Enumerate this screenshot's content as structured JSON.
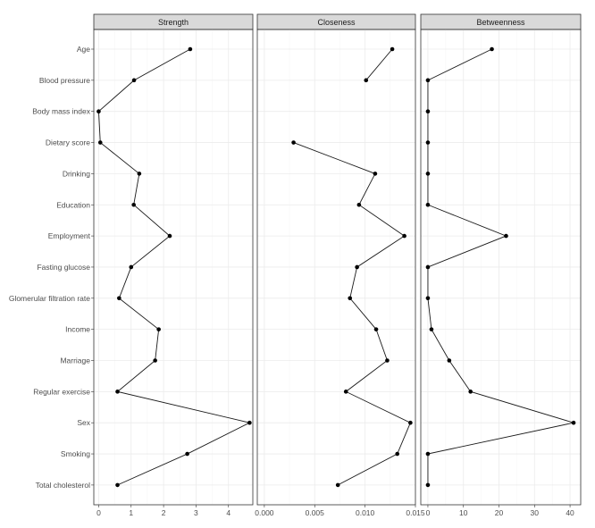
{
  "chart_data": {
    "type": "line",
    "layout": "faceted, shared y categories",
    "categories": [
      "Age",
      "Blood pressure",
      "Body mass index",
      "Dietary score",
      "Drinking",
      "Education",
      "Employment",
      "Fasting glucose",
      "Glomerular filtration rate",
      "Income",
      "Marriage",
      "Regular exercise",
      "Sex",
      "Smoking",
      "Total cholesterol"
    ],
    "panels": [
      {
        "title": "Strength",
        "xlim": [
          -0.15,
          4.75
        ],
        "ticks": [
          0,
          1,
          2,
          3,
          4
        ],
        "tick_labels": [
          "0",
          "1",
          "2",
          "3",
          "4"
        ],
        "values": [
          2.82,
          1.09,
          0.0,
          0.05,
          1.25,
          1.08,
          2.19,
          1.0,
          0.63,
          1.85,
          1.74,
          0.58,
          4.65,
          2.73,
          0.58
        ]
      },
      {
        "title": "Closeness",
        "xlim": [
          -0.0007,
          0.015
        ],
        "ticks": [
          0,
          0.005,
          0.01,
          0.015
        ],
        "tick_labels": [
          "0.000",
          "0.005",
          "0.010",
          "0.015"
        ],
        "values": [
          0.0127,
          0.0101,
          null,
          0.0029,
          0.011,
          0.0094,
          0.0139,
          0.0092,
          0.0085,
          0.0111,
          0.0122,
          0.0081,
          0.0145,
          0.0132,
          0.0073
        ]
      },
      {
        "title": "Betweenness",
        "xlim": [
          -2,
          43
        ],
        "ticks": [
          0,
          10,
          20,
          30,
          40
        ],
        "tick_labels": [
          "0",
          "10",
          "20",
          "30",
          "40"
        ],
        "values": [
          18,
          0,
          0,
          0,
          0,
          0,
          22,
          0,
          0,
          1,
          6,
          12,
          41,
          0,
          0
        ]
      }
    ],
    "grid": true
  }
}
